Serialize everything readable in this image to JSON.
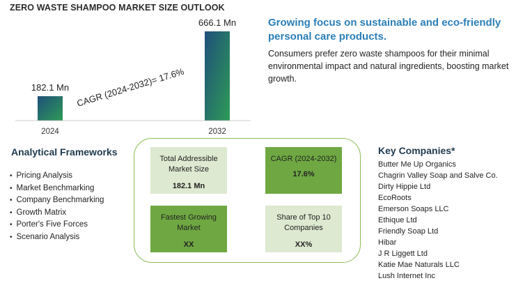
{
  "chart_data": {
    "type": "bar",
    "title": "ZERO WASTE SHAMPOO MARKET SIZE OUTLOOK",
    "categories": [
      "2024",
      "2032"
    ],
    "values": [
      182.1,
      666.1
    ],
    "data_labels": [
      "182.1 Mn",
      "666.1 Mn"
    ],
    "unit": "Mn",
    "annotation": "CAGR (2024-2032)=  17.6%",
    "colors": {
      "bar_top": "#1f4f7a",
      "bar_bottom": "#2e9b57"
    },
    "grid": false
  },
  "headline": "Growing focus on sustainable and eco-friendly personal care products.",
  "description": "Consumers prefer zero waste shampoos for their minimal environmental impact and natural ingredients, boosting market growth.",
  "frameworks": {
    "title": "Analytical Frameworks",
    "items": [
      "Pricing Analysis",
      "Market Benchmarking",
      "Company Benchmarking",
      "Growth Matrix",
      "Porter's Five Forces",
      "Scenario Analysis"
    ]
  },
  "metrics": {
    "tam": {
      "label": "Total Addressible Market Size",
      "value": "182.1 Mn"
    },
    "cagr": {
      "label": "CAGR (2024-2032)",
      "value": "17.6%"
    },
    "fastest": {
      "label": "Fastest Growing Market",
      "value": "XX"
    },
    "share": {
      "label": "Share of Top 10 Companies",
      "value": "XX%"
    }
  },
  "companies": {
    "title": "Key Companies*",
    "items": [
      "Butter Me Up Organics",
      "Chagrin Valley Soap and Salve Co.",
      "Dirty Hippie Ltd",
      "EcoRoots",
      "Emerson Soaps LLC",
      "Ethique Ltd",
      "Friendly Soap Ltd",
      "Hibar",
      "J R Liggett Ltd",
      "Katie Mae Naturals LLC",
      "Lush Internet Inc"
    ]
  },
  "colors": {
    "headline": "#2b7fb8",
    "card_light": "#dde9d0",
    "card_dark": "#6fa842",
    "panel_border": "#8dbb55"
  }
}
